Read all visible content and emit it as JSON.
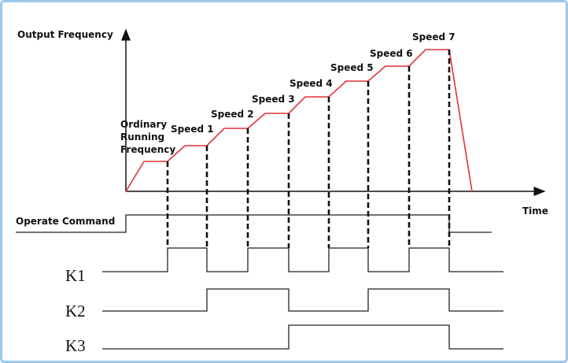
{
  "y_axis_label": "Output Frequency",
  "x_axis_label": "Time",
  "ordinary_label": [
    "Ordinary",
    "Running",
    "Frequency"
  ],
  "speeds": [
    "Speed 1",
    "Speed 2",
    "Speed 3",
    "Speed 4",
    "Speed 5",
    "Speed 6",
    "Speed 7"
  ],
  "operate_label": "Operate Command",
  "signals": [
    "K1",
    "K2",
    "K3"
  ]
}
